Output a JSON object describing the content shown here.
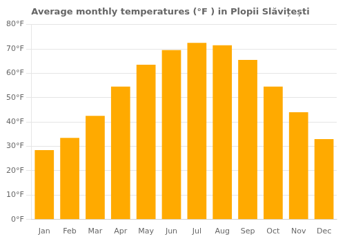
{
  "chart_data": {
    "type": "bar",
    "title": "Average monthly temperatures (°F ) in Plopii Slăvițești",
    "categories": [
      "Jan",
      "Feb",
      "Mar",
      "Apr",
      "May",
      "Jun",
      "Jul",
      "Aug",
      "Sep",
      "Oct",
      "Nov",
      "Dec"
    ],
    "values": [
      28.5,
      33.5,
      42.5,
      54.5,
      63.5,
      69.5,
      72.5,
      71.5,
      65.5,
      54.5,
      44.0,
      33.0
    ],
    "color": "#FFAA00",
    "ylim": [
      0,
      80
    ],
    "yticks": [
      {
        "value": 0,
        "label": "0°F"
      },
      {
        "value": 10,
        "label": "10°F"
      },
      {
        "value": 20,
        "label": "20°F"
      },
      {
        "value": 30,
        "label": "30°F"
      },
      {
        "value": 40,
        "label": "40°F"
      },
      {
        "value": 50,
        "label": "50°F"
      },
      {
        "value": 60,
        "label": "60°F"
      },
      {
        "value": 70,
        "label": "70°F"
      },
      {
        "value": 80,
        "label": "80°F"
      }
    ],
    "grid": true
  }
}
